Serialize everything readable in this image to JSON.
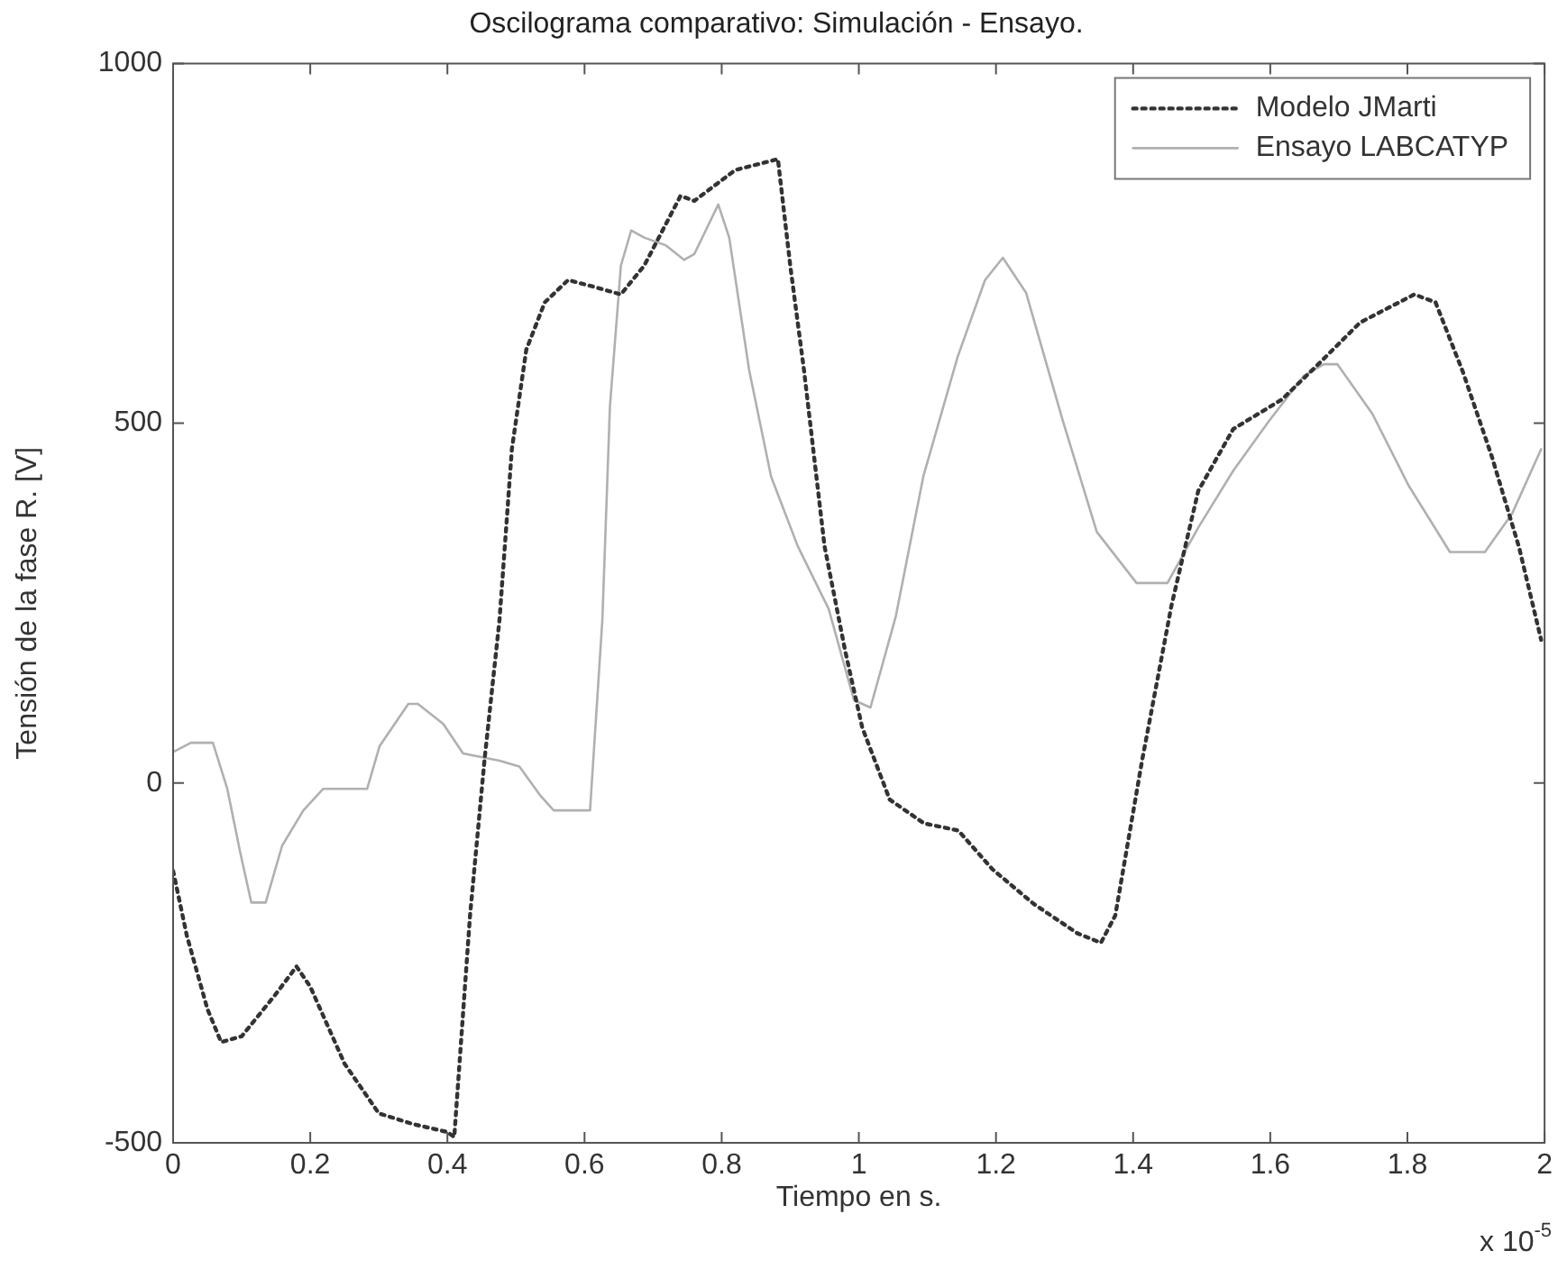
{
  "chart_data": {
    "type": "line",
    "title": "Oscilograma comparativo: Simulación - Ensayo.",
    "xlabel": "Tiempo en s.",
    "ylabel": "Tensión de la fase R. [V]",
    "annotations": [
      "x 10$^{-5}$"
    ],
    "xlim": [
      0,
      2
    ],
    "ylim": [
      -500,
      1000
    ],
    "xticks": [
      0,
      0.2,
      0.4,
      0.6,
      0.8,
      1,
      1.2,
      1.4,
      1.6,
      1.8,
      2
    ],
    "yticks": [
      -500,
      0,
      500,
      1000
    ],
    "grid": false,
    "legend": "top right",
    "marker": "none",
    "series": [
      {
        "name": "Modelo JMarti",
        "color": "#333333",
        "line_style": "dotted",
        "x": [
          0,
          0.02,
          0.05,
          0.07,
          0.1,
          0.15,
          0.18,
          0.2,
          0.25,
          0.3,
          0.35,
          0.4,
          0.41,
          0.433,
          0.454,
          0.476,
          0.494,
          0.515,
          0.542,
          0.576,
          0.616,
          0.653,
          0.687,
          0.74,
          0.76,
          0.82,
          0.882,
          0.9,
          0.92,
          0.95,
          0.98,
          1.005,
          1.045,
          1.095,
          1.145,
          1.195,
          1.255,
          1.319,
          1.353,
          1.374,
          1.413,
          1.456,
          1.495,
          1.546,
          1.617,
          1.67,
          1.731,
          1.81,
          1.841,
          1.881,
          1.923,
          1.963,
          1.995
        ],
        "values": [
          -122,
          -212,
          -314,
          -360,
          -352,
          -293,
          -255,
          -283,
          -390,
          -459,
          -474,
          -485,
          -492,
          -184,
          31,
          227,
          464,
          602,
          668,
          699,
          689,
          679,
          719,
          816,
          809,
          852,
          867,
          719,
          574,
          329,
          184,
          77,
          -23,
          -56,
          -66,
          -120,
          -168,
          -209,
          -222,
          -184,
          31,
          247,
          406,
          492,
          533,
          582,
          640,
          679,
          668,
          571,
          454,
          327,
          199
        ]
      },
      {
        "name": "Ensayo LABCATYP",
        "color": "#b0b0b0",
        "line_style": "solid",
        "x": [
          0,
          0.026,
          0.058,
          0.079,
          0.098,
          0.114,
          0.135,
          0.159,
          0.19,
          0.219,
          0.283,
          0.301,
          0.343,
          0.357,
          0.394,
          0.423,
          0.476,
          0.505,
          0.536,
          0.555,
          0.608,
          0.626,
          0.637,
          0.653,
          0.668,
          0.687,
          0.719,
          0.745,
          0.76,
          0.795,
          0.811,
          0.84,
          0.872,
          0.911,
          0.956,
          0.993,
          1.017,
          1.054,
          1.094,
          1.144,
          1.184,
          1.21,
          1.244,
          1.297,
          1.347,
          1.405,
          1.45,
          1.495,
          1.546,
          1.598,
          1.649,
          1.678,
          1.698,
          1.749,
          1.802,
          1.862,
          1.913,
          1.953,
          1.995
        ],
        "values": [
          43,
          56,
          56,
          -8,
          -97,
          -166,
          -166,
          -87,
          -38,
          -8,
          -8,
          51,
          110,
          110,
          82,
          41,
          31,
          23,
          -18,
          -38,
          -38,
          227,
          523,
          719,
          768,
          758,
          747,
          727,
          735,
          804,
          758,
          574,
          426,
          329,
          242,
          115,
          105,
          232,
          426,
          592,
          699,
          730,
          681,
          505,
          349,
          278,
          278,
          355,
          434,
          503,
          566,
          582,
          582,
          513,
          413,
          321,
          321,
          375,
          464
        ]
      }
    ]
  }
}
